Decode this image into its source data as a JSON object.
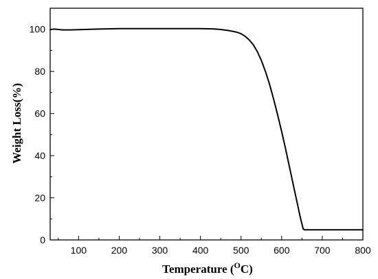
{
  "chart_data": {
    "type": "line",
    "title": "",
    "xlabel": "Temperature (",
    "xlabel_unit_sup": "O",
    "xlabel_unit": "C)",
    "ylabel": "Weight Loss(%)",
    "xlim": [
      30,
      800
    ],
    "ylim": [
      0,
      110
    ],
    "x_ticks": [
      100,
      200,
      300,
      400,
      500,
      600,
      700,
      800
    ],
    "y_ticks": [
      0,
      20,
      40,
      60,
      80,
      100
    ],
    "grid": false,
    "legend": "none",
    "series": [
      {
        "color": "#000000",
        "x": [
          30,
          40,
          60,
          80,
          100,
          150,
          200,
          250,
          300,
          350,
          400,
          430,
          450,
          470,
          490,
          500,
          510,
          520,
          530,
          540,
          550,
          560,
          570,
          580,
          590,
          600,
          610,
          620,
          630,
          640,
          645,
          650,
          653,
          656,
          660,
          680,
          700,
          750,
          800
        ],
        "y": [
          99.8,
          100.1,
          99.7,
          99.7,
          99.8,
          100.1,
          100.3,
          100.3,
          100.3,
          100.3,
          100.3,
          100.2,
          99.9,
          99.4,
          98.6,
          97.9,
          96.7,
          95.0,
          92.7,
          89.4,
          85.2,
          80.0,
          74.0,
          67.0,
          59.5,
          51.5,
          43.0,
          34.0,
          25.0,
          16.0,
          11.5,
          7.5,
          5.3,
          4.8,
          4.8,
          4.8,
          4.8,
          4.8,
          4.8
        ]
      }
    ]
  }
}
